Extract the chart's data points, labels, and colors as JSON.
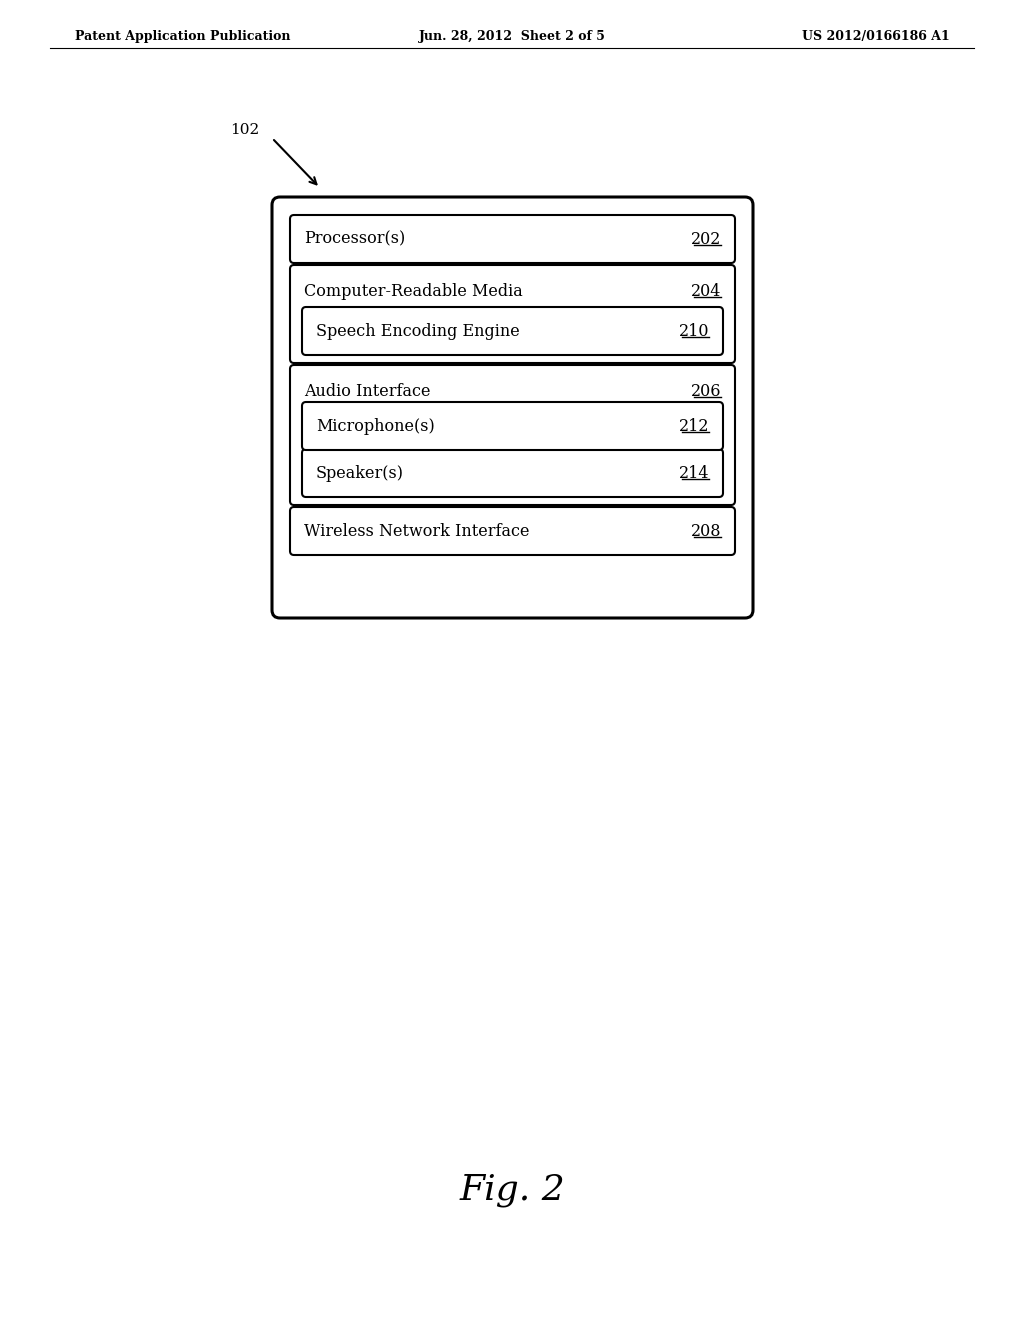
{
  "header_left": "Patent Application Publication",
  "header_center": "Jun. 28, 2012  Sheet 2 of 5",
  "header_right": "US 2012/0166186 A1",
  "label_102": "102",
  "figure_label": "Fig. 2",
  "bg_color": "#ffffff"
}
